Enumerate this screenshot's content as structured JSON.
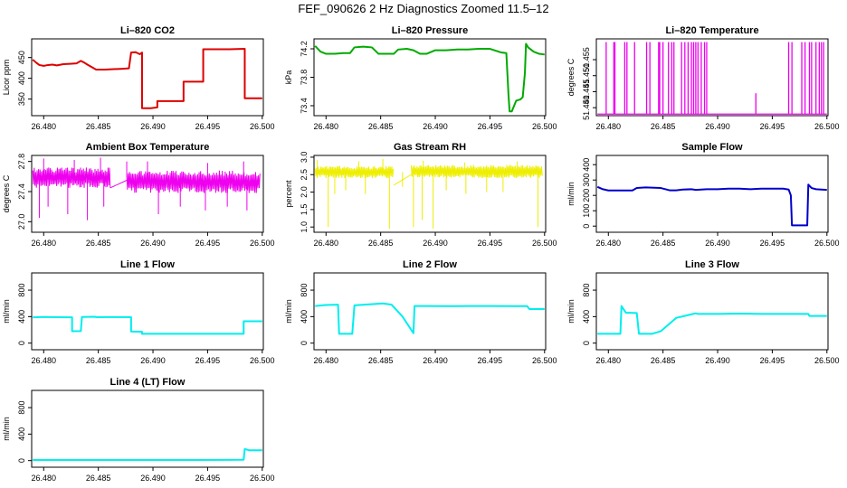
{
  "title": "FEF_090626  2 Hz Diagnostics Zoomed 11.5–12",
  "chart_data": [
    {
      "type": "line",
      "title": "Li–820 CO2",
      "ylabel": "Licor ppm",
      "color": "#dd0000",
      "xlim": [
        26.4789,
        26.5001
      ],
      "ylim": [
        310,
        495
      ],
      "xticks": [
        26.48,
        26.485,
        26.49,
        26.495,
        26.5
      ],
      "xtick_labels": [
        "26.480",
        "26.485",
        "26.490",
        "26.495",
        "26.500"
      ],
      "yticks": [
        350,
        400,
        450
      ],
      "ytick_labels": [
        "350",
        "400",
        "450"
      ],
      "series": [
        {
          "x": [
            26.479,
            26.4793,
            26.4796,
            26.48,
            26.4804,
            26.4808,
            26.4812,
            26.4818,
            26.4824,
            26.483,
            26.4834,
            26.4837,
            26.484,
            26.4848,
            26.4856,
            26.4864,
            26.4872,
            26.4878,
            26.488,
            26.4884,
            26.4888,
            26.489,
            26.489,
            26.4898,
            26.4904,
            26.4904,
            26.4916,
            26.4928,
            26.4928,
            26.4946,
            26.4946,
            26.497,
            26.4984,
            26.4984,
            26.499,
            26.5
          ],
          "y": [
            445,
            438,
            432,
            430,
            432,
            433,
            431,
            434,
            435,
            436,
            442,
            438,
            433,
            421,
            421,
            422,
            423,
            424,
            462,
            463,
            458,
            462,
            328,
            328,
            330,
            345,
            345,
            345,
            392,
            392,
            470,
            470,
            471,
            352,
            352,
            352
          ]
        }
      ]
    },
    {
      "type": "line",
      "title": "Li–820 Pressure",
      "ylabel": "kPa",
      "color": "#00aa00",
      "xlim": [
        26.4789,
        26.5001
      ],
      "ylim": [
        73.26,
        74.34
      ],
      "xticks": [
        26.48,
        26.485,
        26.49,
        26.495,
        26.5
      ],
      "xtick_labels": [
        "26.480",
        "26.485",
        "26.490",
        "26.495",
        "26.500"
      ],
      "yticks": [
        73.4,
        73.8,
        74.2
      ],
      "ytick_labels": [
        "73.4",
        "73.8",
        "74.2"
      ],
      "series": [
        {
          "x": [
            26.479,
            26.4795,
            26.48,
            26.4808,
            26.4816,
            26.4822,
            26.4826,
            26.4834,
            26.4842,
            26.4848,
            26.4856,
            26.4862,
            26.4866,
            26.4874,
            26.488,
            26.4886,
            26.4892,
            26.49,
            26.491,
            26.492,
            26.493,
            26.494,
            26.495,
            26.496,
            26.4965,
            26.4967,
            26.4968,
            26.497,
            26.4974,
            26.4978,
            26.498,
            26.4982,
            26.4983,
            26.4985,
            26.499,
            26.4995,
            26.5
          ],
          "y": [
            74.24,
            74.16,
            74.13,
            74.13,
            74.14,
            74.14,
            74.22,
            74.23,
            74.22,
            74.13,
            74.13,
            74.13,
            74.19,
            74.2,
            74.18,
            74.13,
            74.13,
            74.18,
            74.18,
            74.19,
            74.19,
            74.2,
            74.2,
            74.15,
            74.14,
            73.55,
            73.32,
            73.32,
            73.47,
            73.49,
            73.52,
            73.86,
            74.27,
            74.22,
            74.16,
            74.13,
            74.12
          ]
        }
      ]
    },
    {
      "type": "line",
      "title": "Li–820 Temperature",
      "ylabel": "degrees C",
      "color": "#ee00ee",
      "xlim": [
        26.4789,
        26.5001
      ],
      "ylim": [
        51.4375,
        51.4615
      ],
      "xticks": [
        26.48,
        26.485,
        26.49,
        26.495,
        26.5
      ],
      "xtick_labels": [
        "26.480",
        "26.485",
        "26.490",
        "26.495",
        "26.500"
      ],
      "yticks": [
        51.44,
        51.445,
        51.45,
        51.455
      ],
      "ytick_labels": [
        "51.440",
        "51.445",
        "51.450",
        "51.455"
      ],
      "baseline": 51.438,
      "spike_top": 51.4605,
      "spikes": [
        26.4798,
        26.4805,
        26.4806,
        26.4815,
        26.4817,
        26.4824,
        26.4835,
        26.4838,
        26.4846,
        26.4847,
        26.485,
        26.4855,
        26.4858,
        26.486,
        26.4867,
        26.487,
        26.4873,
        26.4876,
        26.4878,
        26.488,
        26.4882,
        26.4885,
        26.4888,
        26.489,
        26.4935,
        26.4965,
        26.4968,
        26.4977,
        26.498,
        26.4984,
        26.4986,
        26.499,
        26.4993,
        26.4995,
        26.4997
      ]
    },
    {
      "type": "line",
      "title": "Ambient Box Temperature",
      "ylabel": "degrees C",
      "color": "#ee00ee",
      "xlim": [
        26.4789,
        26.5001
      ],
      "ylim": [
        26.86,
        27.88
      ],
      "xticks": [
        26.48,
        26.485,
        26.49,
        26.495,
        26.5
      ],
      "xtick_labels": [
        "26.480",
        "26.485",
        "26.490",
        "26.495",
        "26.500"
      ],
      "yticks": [
        27.0,
        27.4,
        27.8
      ],
      "ytick_labels": [
        "27.0",
        "27.4",
        "27.8"
      ],
      "band": [
        [
          26.479,
          26.4861,
          27.45,
          27.72
        ],
        [
          26.4876,
          26.4998,
          27.38,
          27.68
        ]
      ],
      "series": [
        {
          "x": [
            26.4861,
            26.4876
          ],
          "y": [
            27.45,
            27.55
          ]
        }
      ],
      "dips": [
        [
          26.4796,
          27.05
        ],
        [
          26.4804,
          27.2
        ],
        [
          26.4822,
          27.1
        ],
        [
          26.484,
          27.02
        ],
        [
          26.4855,
          27.2
        ],
        [
          26.4905,
          27.1
        ],
        [
          26.4925,
          27.2
        ],
        [
          26.4948,
          27.15
        ],
        [
          26.4968,
          27.2
        ],
        [
          26.4986,
          27.15
        ]
      ],
      "peaks": [
        [
          26.48,
          27.84
        ],
        [
          26.4828,
          27.82
        ],
        [
          26.4852,
          27.85
        ],
        [
          26.4876,
          27.8
        ],
        [
          26.4895,
          27.8
        ],
        [
          26.495,
          27.78
        ],
        [
          26.4983,
          27.8
        ]
      ]
    },
    {
      "type": "line",
      "title": "Gas Stream RH",
      "ylabel": "percent",
      "color": "#eeee00",
      "xlim": [
        26.4789,
        26.5001
      ],
      "ylim": [
        0.85,
        3.05
      ],
      "xticks": [
        26.48,
        26.485,
        26.49,
        26.495,
        26.5
      ],
      "xtick_labels": [
        "26.480",
        "26.485",
        "26.490",
        "26.495",
        "26.500"
      ],
      "yticks": [
        1.0,
        1.5,
        2.0,
        2.5,
        3.0
      ],
      "ytick_labels": [
        "1.0",
        "1.5",
        "2.0",
        "2.5",
        "3.0"
      ],
      "band": [
        [
          26.479,
          26.4862,
          2.4,
          2.75
        ],
        [
          26.4878,
          26.4998,
          2.4,
          2.78
        ]
      ],
      "series": [
        {
          "x": [
            26.4862,
            26.4878
          ],
          "y": [
            2.2,
            2.5
          ]
        }
      ],
      "dips": [
        [
          26.4802,
          1.0
        ],
        [
          26.4808,
          1.95
        ],
        [
          26.4818,
          2.05
        ],
        [
          26.4836,
          1.95
        ],
        [
          26.4858,
          0.95
        ],
        [
          26.487,
          2.15
        ],
        [
          26.488,
          1.0
        ],
        [
          26.4888,
          1.2
        ],
        [
          26.4898,
          0.95
        ],
        [
          26.491,
          2.05
        ],
        [
          26.4928,
          1.95
        ],
        [
          26.4947,
          2.0
        ],
        [
          26.4962,
          2.0
        ],
        [
          26.4994,
          1.0
        ]
      ],
      "peaks": [
        [
          26.4792,
          2.92
        ],
        [
          26.483,
          2.88
        ],
        [
          26.4852,
          2.95
        ],
        [
          26.4889,
          2.9
        ],
        [
          26.4927,
          2.85
        ],
        [
          26.4975,
          2.88
        ]
      ]
    },
    {
      "type": "line",
      "title": "Sample Flow",
      "ylabel": "ml/min",
      "color": "#0000cc",
      "xlim": [
        26.4789,
        26.5001
      ],
      "ylim": [
        -40,
        460
      ],
      "xticks": [
        26.48,
        26.485,
        26.49,
        26.495,
        26.5
      ],
      "xtick_labels": [
        "26.480",
        "26.485",
        "26.490",
        "26.495",
        "26.500"
      ],
      "yticks": [
        0,
        100,
        200,
        300,
        400
      ],
      "ytick_labels": [
        "0",
        "100",
        "200",
        "300",
        "400"
      ],
      "series": [
        {
          "x": [
            26.479,
            26.4795,
            26.48,
            26.481,
            26.4822,
            26.4826,
            26.4834,
            26.4848,
            26.4856,
            26.4862,
            26.4868,
            26.4876,
            26.488,
            26.489,
            26.49,
            26.491,
            26.492,
            26.493,
            26.494,
            26.495,
            26.496,
            26.4965,
            26.4967,
            26.4968,
            26.4982,
            26.4983,
            26.4986,
            26.499,
            26.5
          ],
          "y": [
            255,
            240,
            232,
            232,
            232,
            248,
            252,
            248,
            233,
            233,
            238,
            240,
            236,
            240,
            240,
            244,
            244,
            240,
            244,
            244,
            244,
            238,
            200,
            5,
            5,
            270,
            248,
            240,
            236
          ]
        }
      ]
    },
    {
      "type": "line",
      "title": "Line 1 Flow",
      "ylabel": "ml/min",
      "color": "#00eeee",
      "xlim": [
        26.4789,
        26.5001
      ],
      "ylim": [
        -100,
        1060
      ],
      "xticks": [
        26.48,
        26.485,
        26.49,
        26.495,
        26.5
      ],
      "xtick_labels": [
        "26.480",
        "26.485",
        "26.490",
        "26.495",
        "26.500"
      ],
      "yticks": [
        0,
        400,
        800
      ],
      "ytick_labels": [
        "0",
        "400",
        "800"
      ],
      "series": [
        {
          "x": [
            26.479,
            26.48,
            26.4812,
            26.4826,
            26.4826,
            26.4834,
            26.4835,
            26.4847,
            26.4848,
            26.4858,
            26.488,
            26.488,
            26.489,
            26.489,
            26.495,
            26.4983,
            26.4983,
            26.5
          ],
          "y": [
            390,
            395,
            392,
            390,
            180,
            182,
            395,
            398,
            392,
            393,
            392,
            175,
            172,
            140,
            140,
            140,
            330,
            330
          ]
        }
      ]
    },
    {
      "type": "line",
      "title": "Line 2 Flow",
      "ylabel": "ml/min",
      "color": "#00eeee",
      "xlim": [
        26.4789,
        26.5001
      ],
      "ylim": [
        -100,
        1060
      ],
      "xticks": [
        26.48,
        26.485,
        26.49,
        26.495,
        26.5
      ],
      "xtick_labels": [
        "26.480",
        "26.485",
        "26.490",
        "26.495",
        "26.500"
      ],
      "yticks": [
        0,
        400,
        800
      ],
      "ytick_labels": [
        "0",
        "400",
        "800"
      ],
      "series": [
        {
          "x": [
            26.479,
            26.48,
            26.4811,
            26.4812,
            26.4824,
            26.4826,
            26.484,
            26.4852,
            26.486,
            26.487,
            26.488,
            26.4881,
            26.489,
            26.491,
            26.493,
            26.495,
            26.497,
            26.4984,
            26.4986,
            26.5
          ],
          "y": [
            560,
            575,
            580,
            140,
            140,
            570,
            585,
            600,
            580,
            400,
            150,
            560,
            560,
            558,
            560,
            560,
            558,
            558,
            515,
            515
          ]
        }
      ]
    },
    {
      "type": "line",
      "title": "Line 3 Flow",
      "ylabel": "ml/min",
      "color": "#00eeee",
      "xlim": [
        26.4789,
        26.5001
      ],
      "ylim": [
        -100,
        1060
      ],
      "xticks": [
        26.48,
        26.485,
        26.49,
        26.495,
        26.5
      ],
      "xtick_labels": [
        "26.480",
        "26.485",
        "26.490",
        "26.495",
        "26.500"
      ],
      "yticks": [
        0,
        400,
        800
      ],
      "ytick_labels": [
        "0",
        "400",
        "800"
      ],
      "series": [
        {
          "x": [
            26.479,
            26.4802,
            26.4811,
            26.4812,
            26.4816,
            26.4826,
            26.4828,
            26.4836,
            26.484,
            26.4848,
            26.4862,
            26.488,
            26.4882,
            26.49,
            26.492,
            26.494,
            26.496,
            26.4983,
            26.4984,
            26.5
          ],
          "y": [
            140,
            140,
            140,
            560,
            460,
            455,
            140,
            140,
            140,
            180,
            380,
            450,
            440,
            440,
            445,
            440,
            440,
            440,
            410,
            410
          ]
        }
      ]
    },
    {
      "type": "line",
      "title": "Line 4 (LT) Flow",
      "ylabel": "ml/min",
      "color": "#00eeee",
      "xlim": [
        26.4789,
        26.5001
      ],
      "ylim": [
        -100,
        1060
      ],
      "xticks": [
        26.48,
        26.485,
        26.49,
        26.495,
        26.5
      ],
      "xtick_labels": [
        "26.480",
        "26.485",
        "26.490",
        "26.495",
        "26.500"
      ],
      "yticks": [
        0,
        400,
        800
      ],
      "ytick_labels": [
        "0",
        "400",
        "800"
      ],
      "series": [
        {
          "x": [
            26.479,
            26.482,
            26.485,
            26.488,
            26.491,
            26.494,
            26.4983,
            26.4984,
            26.4988,
            26.5
          ],
          "y": [
            10,
            10,
            10,
            10,
            10,
            10,
            12,
            175,
            155,
            155
          ]
        }
      ]
    }
  ]
}
